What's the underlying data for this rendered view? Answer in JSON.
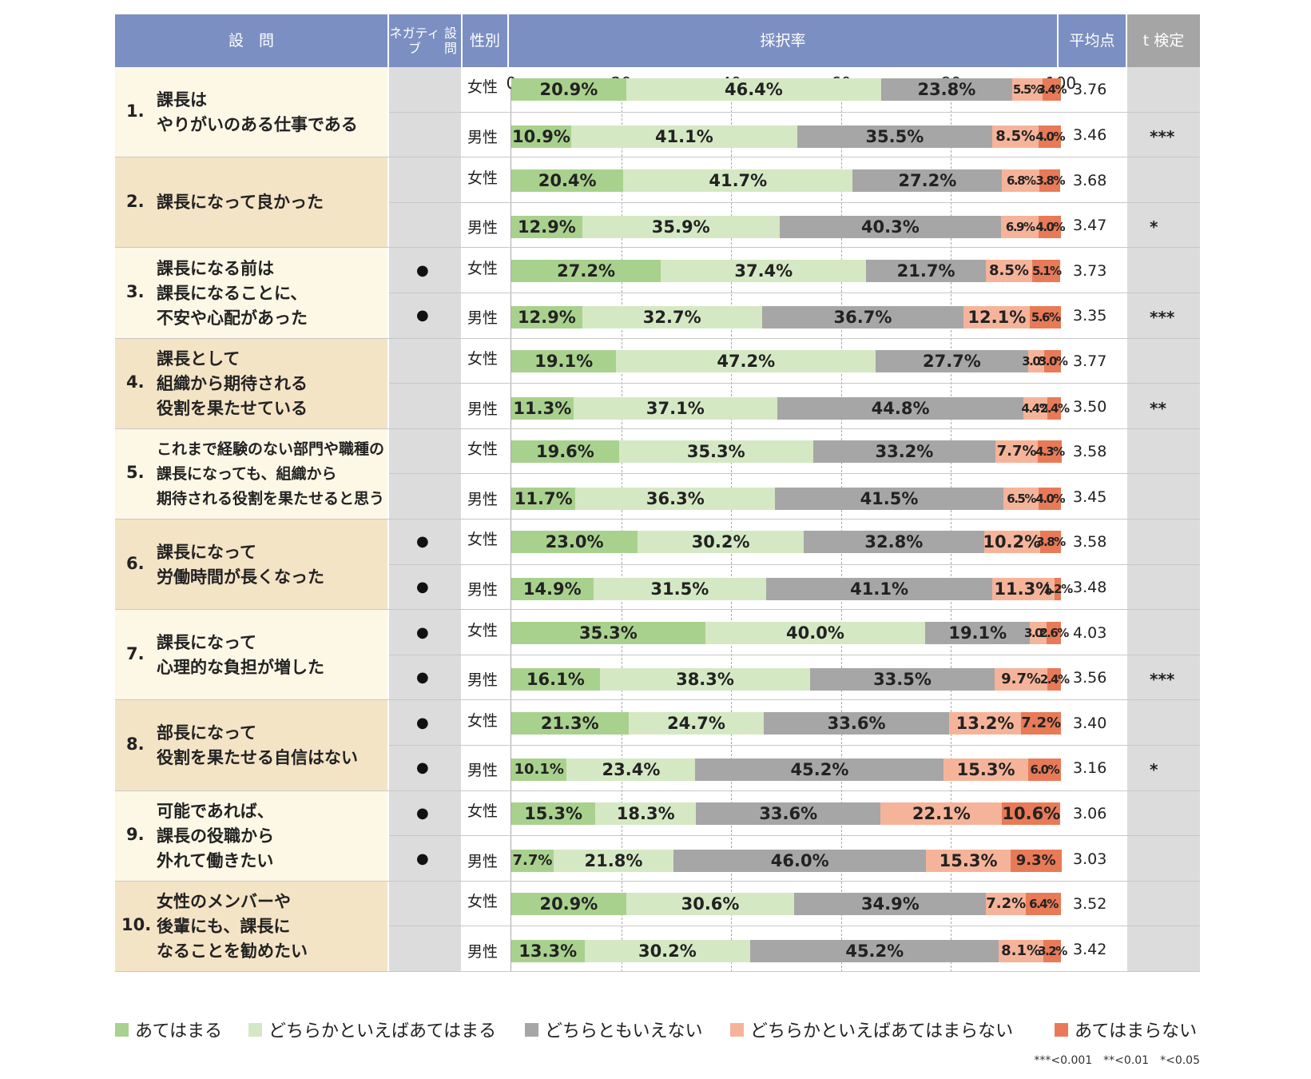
{
  "header": {
    "question": "設　問",
    "negative": "ネガティブ設問",
    "negative_line1": "ネガティブ",
    "negative_line2": "設問",
    "gender": "性別",
    "rate": "採択率",
    "average": "平均点",
    "ttest": "t 検定"
  },
  "colors": {
    "header_bg": "#7b8fc2",
    "header_ttest_bg": "#a5a5a5",
    "row_light": "#fdf7e6",
    "row_dark": "#f4e4c6",
    "neg_col": "#dcdcdc",
    "ttest_col": "#dcdcdc",
    "grid_line": "#aaaaaa",
    "row_line": "#c8c8c8",
    "categories": [
      "#a9d18e",
      "#d5e8c4",
      "#a6a6a6",
      "#f5b49a",
      "#e87a57"
    ]
  },
  "legend": [
    "あてはまる",
    "どちらかといえばあてはまる",
    "どちらともいえない",
    "どちらかといえばあてはまらない",
    "あてはまらない"
  ],
  "footnote": "***<0.001　**<0.01　*<0.05",
  "chart_data": {
    "type": "bar",
    "orientation": "horizontal-stacked-100",
    "xlim": [
      0,
      100
    ],
    "xticks": [
      "0",
      "20",
      "40",
      "60",
      "80",
      "100"
    ],
    "categories": [
      "あてはまる",
      "どちらかといえばあてはまる",
      "どちらともいえない",
      "どちらかといえばあてはまらない",
      "あてはまらない"
    ],
    "questions": [
      {
        "num": "1.",
        "lines": [
          "課長は",
          "やりがいのある仕事である"
        ],
        "rows": [
          {
            "gender": "女性",
            "negative": "",
            "values": [
              20.9,
              46.4,
              23.8,
              5.5,
              3.4
            ],
            "labels": [
              "20.9%",
              "46.4%",
              "23.8%",
              "5.5%",
              "3.4%"
            ],
            "avg": "3.76",
            "sig": ""
          },
          {
            "gender": "男性",
            "negative": "",
            "values": [
              10.9,
              41.1,
              35.5,
              8.5,
              4.0
            ],
            "labels": [
              "10.9%",
              "41.1%",
              "35.5%",
              "8.5%",
              "4.0%"
            ],
            "avg": "3.46",
            "sig": "***"
          }
        ]
      },
      {
        "num": "2.",
        "lines": [
          "課長になって良かった"
        ],
        "rows": [
          {
            "gender": "女性",
            "negative": "",
            "values": [
              20.4,
              41.7,
              27.2,
              6.8,
              3.8
            ],
            "labels": [
              "20.4%",
              "41.7%",
              "27.2%",
              "6.8%",
              "3.8%"
            ],
            "avg": "3.68",
            "sig": ""
          },
          {
            "gender": "男性",
            "negative": "",
            "values": [
              12.9,
              35.9,
              40.3,
              6.9,
              4.0
            ],
            "labels": [
              "12.9%",
              "35.9%",
              "40.3%",
              "6.9%",
              "4.0%"
            ],
            "avg": "3.47",
            "sig": "*"
          }
        ]
      },
      {
        "num": "3.",
        "lines": [
          "課長になる前は",
          "課長になることに、",
          "不安や心配があった"
        ],
        "rows": [
          {
            "gender": "女性",
            "negative": "●",
            "values": [
              27.2,
              37.4,
              21.7,
              8.5,
              5.1
            ],
            "labels": [
              "27.2%",
              "37.4%",
              "21.7%",
              "8.5%",
              "5.1%"
            ],
            "avg": "3.73",
            "sig": ""
          },
          {
            "gender": "男性",
            "negative": "●",
            "values": [
              12.9,
              32.7,
              36.7,
              12.1,
              5.6
            ],
            "labels": [
              "12.9%",
              "32.7%",
              "36.7%",
              "12.1%",
              "5.6%"
            ],
            "avg": "3.35",
            "sig": "***"
          }
        ]
      },
      {
        "num": "4.",
        "lines": [
          "課長として",
          "組織から期待される",
          "役割を果たせている"
        ],
        "rows": [
          {
            "gender": "女性",
            "negative": "",
            "values": [
              19.1,
              47.2,
              27.7,
              3.0,
              3.0
            ],
            "labels": [
              "19.1%",
              "47.2%",
              "27.7%",
              "3.0%",
              "3.0%"
            ],
            "avg": "3.77",
            "sig": ""
          },
          {
            "gender": "男性",
            "negative": "",
            "values": [
              11.3,
              37.1,
              44.8,
              4.4,
              2.4
            ],
            "labels": [
              "11.3%",
              "37.1%",
              "44.8%",
              "4.4%",
              "2.4%"
            ],
            "avg": "3.50",
            "sig": "**"
          }
        ]
      },
      {
        "num": "5.",
        "lines": [
          "これまで経験のない部門や職種の",
          "課長になっても、組織から",
          "期待される役割を果たせると思う"
        ],
        "rows": [
          {
            "gender": "女性",
            "negative": "",
            "values": [
              19.6,
              35.3,
              33.2,
              7.7,
              4.3
            ],
            "labels": [
              "19.6%",
              "35.3%",
              "33.2%",
              "7.7%",
              "4.3%"
            ],
            "avg": "3.58",
            "sig": ""
          },
          {
            "gender": "男性",
            "negative": "",
            "values": [
              11.7,
              36.3,
              41.5,
              6.5,
              4.0
            ],
            "labels": [
              "11.7%",
              "36.3%",
              "41.5%",
              "6.5%",
              "4.0%"
            ],
            "avg": "3.45",
            "sig": ""
          }
        ]
      },
      {
        "num": "6.",
        "lines": [
          "課長になって",
          "労働時間が長くなった"
        ],
        "rows": [
          {
            "gender": "女性",
            "negative": "●",
            "values": [
              23.0,
              30.2,
              32.8,
              10.2,
              3.8
            ],
            "labels": [
              "23.0%",
              "30.2%",
              "32.8%",
              "10.2%",
              "3.8%"
            ],
            "avg": "3.58",
            "sig": ""
          },
          {
            "gender": "男性",
            "negative": "●",
            "values": [
              14.9,
              31.5,
              41.1,
              11.3,
              1.2
            ],
            "labels": [
              "14.9%",
              "31.5%",
              "41.1%",
              "11.3%",
              "1.2%"
            ],
            "avg": "3.48",
            "sig": ""
          }
        ]
      },
      {
        "num": "7.",
        "lines": [
          "課長になって",
          "心理的な負担が増した"
        ],
        "rows": [
          {
            "gender": "女性",
            "negative": "●",
            "values": [
              35.3,
              40.0,
              19.1,
              3.0,
              2.6
            ],
            "labels": [
              "35.3%",
              "40.0%",
              "19.1%",
              "3.0%",
              "2.6%"
            ],
            "avg": "4.03",
            "sig": ""
          },
          {
            "gender": "男性",
            "negative": "●",
            "values": [
              16.1,
              38.3,
              33.5,
              9.7,
              2.4
            ],
            "labels": [
              "16.1%",
              "38.3%",
              "33.5%",
              "9.7%",
              "2.4%"
            ],
            "avg": "3.56",
            "sig": "***"
          }
        ]
      },
      {
        "num": "8.",
        "lines": [
          "部長になって",
          "役割を果たせる自信はない"
        ],
        "rows": [
          {
            "gender": "女性",
            "negative": "●",
            "values": [
              21.3,
              24.7,
              33.6,
              13.2,
              7.2
            ],
            "labels": [
              "21.3%",
              "24.7%",
              "33.6%",
              "13.2%",
              "7.2%"
            ],
            "avg": "3.40",
            "sig": ""
          },
          {
            "gender": "男性",
            "negative": "●",
            "values": [
              10.1,
              23.4,
              45.2,
              15.3,
              6.0
            ],
            "labels": [
              "10.1%",
              "23.4%",
              "45.2%",
              "15.3%",
              "6.0%"
            ],
            "avg": "3.16",
            "sig": "*"
          }
        ]
      },
      {
        "num": "9.",
        "lines": [
          "可能であれば、",
          "課長の役職から",
          "外れて働きたい"
        ],
        "rows": [
          {
            "gender": "女性",
            "negative": "●",
            "values": [
              15.3,
              18.3,
              33.6,
              22.1,
              10.6
            ],
            "labels": [
              "15.3%",
              "18.3%",
              "33.6%",
              "22.1%",
              "10.6%"
            ],
            "avg": "3.06",
            "sig": ""
          },
          {
            "gender": "男性",
            "negative": "●",
            "values": [
              7.7,
              21.8,
              46.0,
              15.3,
              9.3
            ],
            "labels": [
              "7.7%",
              "21.8%",
              "46.0%",
              "15.3%",
              "9.3%"
            ],
            "avg": "3.03",
            "sig": ""
          }
        ]
      },
      {
        "num": "10.",
        "lines": [
          "女性のメンバーや",
          "後輩にも、課長に",
          "なることを勧めたい"
        ],
        "rows": [
          {
            "gender": "女性",
            "negative": "",
            "values": [
              20.9,
              30.6,
              34.9,
              7.2,
              6.4
            ],
            "labels": [
              "20.9%",
              "30.6%",
              "34.9%",
              "7.2%",
              "6.4%"
            ],
            "avg": "3.52",
            "sig": ""
          },
          {
            "gender": "男性",
            "negative": "",
            "values": [
              13.3,
              30.2,
              45.2,
              8.1,
              3.2
            ],
            "labels": [
              "13.3%",
              "30.2%",
              "45.2%",
              "8.1%",
              "3.2%"
            ],
            "avg": "3.42",
            "sig": ""
          }
        ]
      }
    ]
  }
}
